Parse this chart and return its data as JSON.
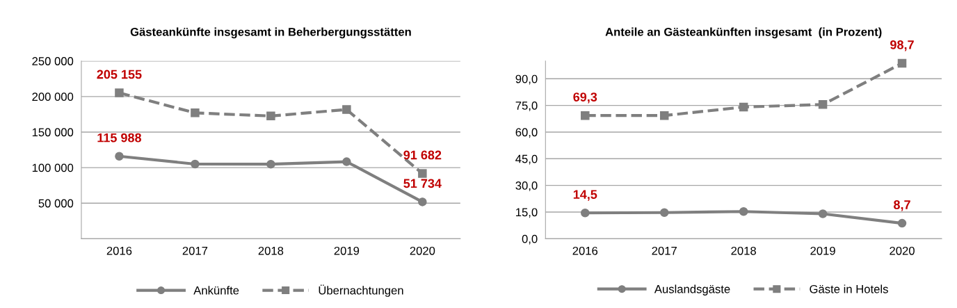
{
  "chart_data": [
    {
      "type": "line",
      "title": "Gästeankünfte insgesamt in Beherbergungsstätten",
      "categories": [
        "2016",
        "2017",
        "2018",
        "2019",
        "2020"
      ],
      "ylim": [
        0,
        250000
      ],
      "yticks": [
        {
          "value": 0,
          "label": null
        },
        {
          "value": 50000,
          "label": "50 000"
        },
        {
          "value": 100000,
          "label": "100 000"
        },
        {
          "value": 150000,
          "label": "150 000"
        },
        {
          "value": 200000,
          "label": "200 000"
        },
        {
          "value": 250000,
          "label": "250 000"
        }
      ],
      "grid": "y",
      "legend": "bottom",
      "series": [
        {
          "name": "Ankünfte",
          "color": "#7f7f7f",
          "marker": "circle",
          "line_style": "solid",
          "values": [
            115988,
            105000,
            104800,
            108300,
            51734
          ],
          "value_labels": [
            "115 988",
            null,
            null,
            null,
            "51 734"
          ]
        },
        {
          "name": "Übernachtungen",
          "color": "#7f7f7f",
          "marker": "square",
          "line_style": "dashed",
          "values": [
            205155,
            177000,
            172600,
            181700,
            91682
          ],
          "value_labels": [
            "205 155",
            null,
            null,
            null,
            "91 682"
          ]
        }
      ]
    },
    {
      "type": "line",
      "title": "Anteile an Gästeankünften insgesamt  (in Prozent)",
      "categories": [
        "2016",
        "2017",
        "2018",
        "2019",
        "2020"
      ],
      "ylim": [
        0,
        100
      ],
      "yticks": [
        {
          "value": 0,
          "label": "0,0"
        },
        {
          "value": 15,
          "label": "15,0"
        },
        {
          "value": 30,
          "label": "30,0"
        },
        {
          "value": 45,
          "label": "45,0"
        },
        {
          "value": 60,
          "label": "60,0"
        },
        {
          "value": 75,
          "label": "75,0"
        },
        {
          "value": 90,
          "label": "90,0"
        }
      ],
      "grid": "y",
      "legend": "bottom",
      "series": [
        {
          "name": "Auslandsgäste",
          "color": "#7f7f7f",
          "marker": "circle",
          "line_style": "solid",
          "values": [
            14.5,
            14.7,
            15.3,
            14.0,
            8.7
          ],
          "value_labels": [
            "14,5",
            null,
            null,
            null,
            "8,7"
          ]
        },
        {
          "name": "Gäste in Hotels",
          "color": "#7f7f7f",
          "marker": "square",
          "line_style": "dashed",
          "values": [
            69.3,
            69.3,
            74.1,
            75.5,
            98.7
          ],
          "value_labels": [
            "69,3",
            null,
            null,
            null,
            "98,7"
          ]
        }
      ]
    }
  ]
}
